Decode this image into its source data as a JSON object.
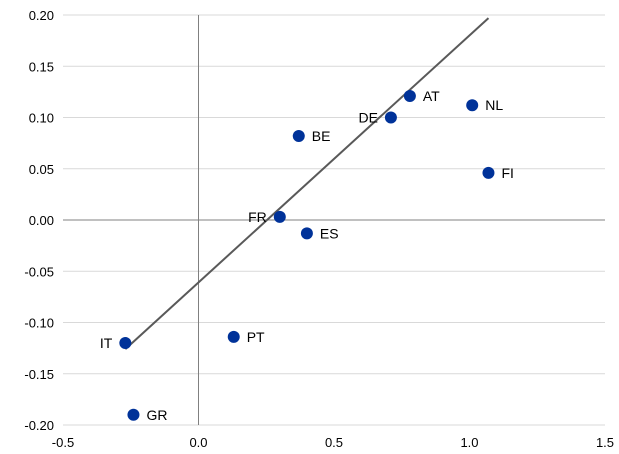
{
  "chart_data": {
    "type": "scatter",
    "title": "",
    "xlabel": "",
    "ylabel": "",
    "xlim": [
      -0.5,
      1.5
    ],
    "ylim": [
      -0.2,
      0.2
    ],
    "x_ticks": [
      -0.5,
      0.0,
      0.5,
      1.0,
      1.5
    ],
    "x_tick_labels": [
      "-0.5",
      "0.0",
      "0.5",
      "1.0",
      "1.5"
    ],
    "y_ticks": [
      0.2,
      0.15,
      0.1,
      0.05,
      0.0,
      -0.05,
      -0.1,
      -0.15,
      -0.2
    ],
    "y_tick_labels": [
      "0.20",
      "0.15",
      "0.10",
      "0.05",
      "0.00",
      "-0.05",
      "-0.10",
      "-0.15",
      "-0.20"
    ],
    "grid": "horizontal",
    "points": [
      {
        "label": "AT",
        "x": 0.78,
        "y": 0.121,
        "label_side": "right"
      },
      {
        "label": "NL",
        "x": 1.01,
        "y": 0.112,
        "label_side": "right"
      },
      {
        "label": "DE",
        "x": 0.71,
        "y": 0.1,
        "label_side": "left"
      },
      {
        "label": "BE",
        "x": 0.37,
        "y": 0.082,
        "label_side": "right"
      },
      {
        "label": "FI",
        "x": 1.07,
        "y": 0.046,
        "label_side": "right"
      },
      {
        "label": "FR",
        "x": 0.3,
        "y": 0.003,
        "label_side": "left"
      },
      {
        "label": "ES",
        "x": 0.4,
        "y": -0.013,
        "label_side": "right"
      },
      {
        "label": "PT",
        "x": 0.13,
        "y": -0.114,
        "label_side": "right"
      },
      {
        "label": "IT",
        "x": -0.27,
        "y": -0.12,
        "label_side": "left"
      },
      {
        "label": "GR",
        "x": -0.24,
        "y": -0.19,
        "label_side": "right"
      }
    ],
    "trendline": {
      "x": [
        -0.27,
        1.07
      ],
      "y": [
        -0.126,
        0.197
      ]
    },
    "colors": {
      "point": "#003299",
      "trendline": "#595959",
      "zero_axis": "#808080",
      "grid": "#d9d9d9"
    }
  }
}
